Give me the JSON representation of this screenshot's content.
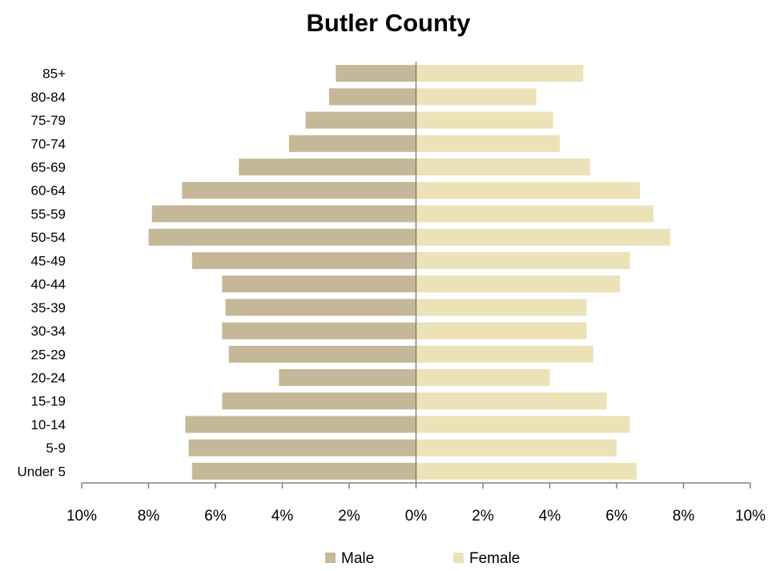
{
  "chart_data": {
    "type": "bar",
    "orientation": "horizontal-pyramid",
    "title": "Butler County",
    "categories": [
      "85+",
      "80-84",
      "75-79",
      "70-74",
      "65-69",
      "60-64",
      "55-59",
      "50-54",
      "45-49",
      "40-44",
      "35-39",
      "30-34",
      "25-29",
      "20-24",
      "15-19",
      "10-14",
      "5-9",
      "Under 5"
    ],
    "series": [
      {
        "name": "Male",
        "color": "#c5b898",
        "values": [
          2.4,
          2.6,
          3.3,
          3.8,
          5.3,
          7.0,
          7.9,
          8.0,
          6.7,
          5.8,
          5.7,
          5.8,
          5.6,
          4.1,
          5.8,
          6.9,
          6.8,
          6.7
        ]
      },
      {
        "name": "Female",
        "color": "#ebe3b7",
        "values": [
          5.0,
          3.6,
          4.1,
          4.3,
          5.2,
          6.7,
          7.1,
          7.6,
          6.4,
          6.1,
          5.1,
          5.1,
          5.3,
          4.0,
          5.7,
          6.4,
          6.0,
          6.6
        ]
      }
    ],
    "xlim": [
      -10,
      10
    ],
    "x_ticks": [
      -10,
      -8,
      -6,
      -4,
      -2,
      0,
      2,
      4,
      6,
      8,
      10
    ],
    "x_tick_labels": [
      "10%",
      "8%",
      "6%",
      "4%",
      "2%",
      "0%",
      "2%",
      "4%",
      "6%",
      "8%",
      "10%"
    ],
    "xlabel": "",
    "ylabel": "",
    "grid": false,
    "legend_position": "bottom"
  }
}
